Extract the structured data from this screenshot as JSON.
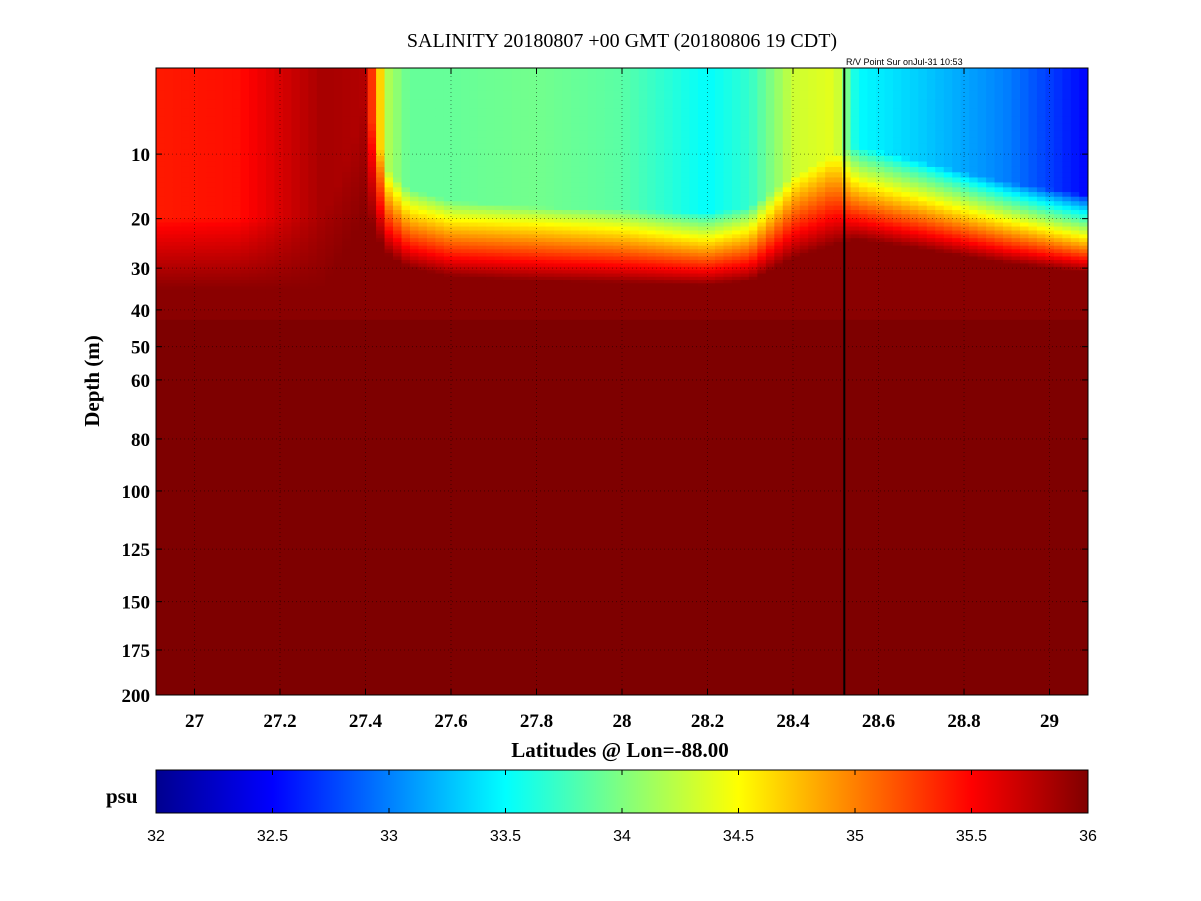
{
  "chart_data": {
    "type": "heatmap",
    "title": "SALINITY 20180807 +00 GMT (20180806 19 CDT)",
    "annotation": "R/V Point Sur onJul-31 10:53",
    "xlabel": "Latitudes @ Lon=-88.00",
    "ylabel": "Depth (m)",
    "xlim": [
      26.91,
      29.09
    ],
    "ylim": [
      200,
      2
    ],
    "x_ticks": [
      27,
      27.2,
      27.4,
      27.6,
      27.8,
      28,
      28.2,
      28.4,
      28.6,
      28.8,
      29
    ],
    "x_tick_labels": [
      "27",
      "27.2",
      "27.4",
      "27.6",
      "27.8",
      "28",
      "28.2",
      "28.4",
      "28.6",
      "28.8",
      "29"
    ],
    "y_ticks": [
      10,
      20,
      30,
      40,
      50,
      60,
      80,
      100,
      125,
      150,
      175,
      200
    ],
    "y_tick_labels": [
      "10",
      "20",
      "30",
      "40",
      "50",
      "60",
      "80",
      "100",
      "125",
      "150",
      "175",
      "200"
    ],
    "y_scale": "sqrt",
    "grid": true,
    "vertical_marker_lat": 28.52,
    "colorbar": {
      "label": "psu",
      "range": [
        32,
        36
      ],
      "ticks": [
        32,
        32.5,
        33,
        33.5,
        34,
        34.5,
        35,
        35.5,
        36
      ],
      "tick_labels": [
        "32",
        "32.5",
        "33",
        "33.5",
        "34",
        "34.5",
        "35",
        "35.5",
        "36"
      ],
      "colormap": "jet"
    },
    "surface_layer": {
      "lat": [
        26.91,
        27.1,
        27.3,
        27.4,
        27.45,
        27.5,
        27.6,
        27.8,
        28.0,
        28.2,
        28.3,
        28.4,
        28.5,
        28.55,
        28.7,
        28.9,
        29.09
      ],
      "salinity": [
        35.4,
        35.45,
        35.85,
        35.8,
        34.2,
        33.9,
        33.9,
        33.95,
        33.85,
        33.5,
        33.7,
        34.3,
        34.4,
        33.5,
        33.3,
        33.0,
        32.5
      ],
      "mixed_layer_depth_m": [
        20,
        20,
        20,
        4,
        12,
        15,
        17,
        18,
        18.5,
        19,
        18,
        13,
        10,
        9,
        11,
        14,
        16
      ]
    }
  }
}
